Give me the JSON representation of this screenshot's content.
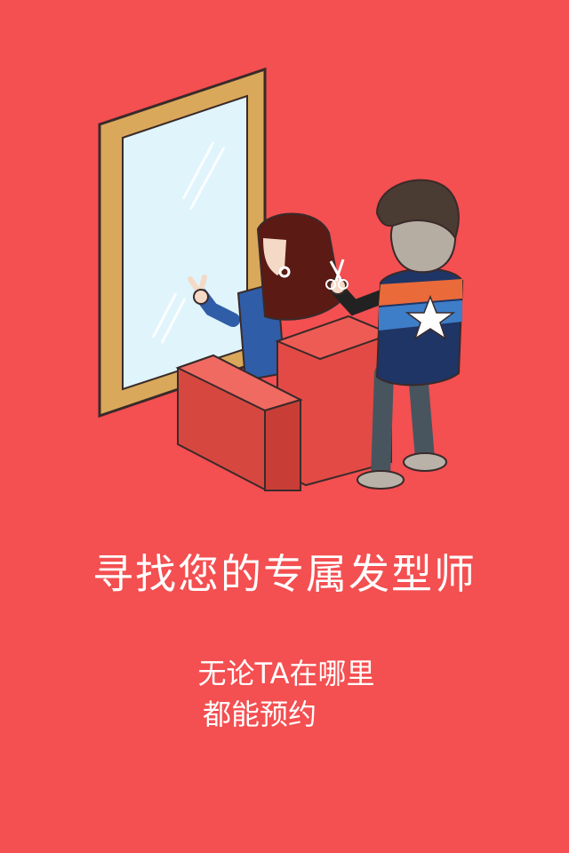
{
  "colors": {
    "background": "#f44f51",
    "text": "#ffffff"
  },
  "splash": {
    "illustration": "hairdresser-cutting-hair-illustration",
    "title": "寻找您的专属发型师",
    "subtitle_line1": "无论TA在哪里",
    "subtitle_line2": "都能预约"
  }
}
